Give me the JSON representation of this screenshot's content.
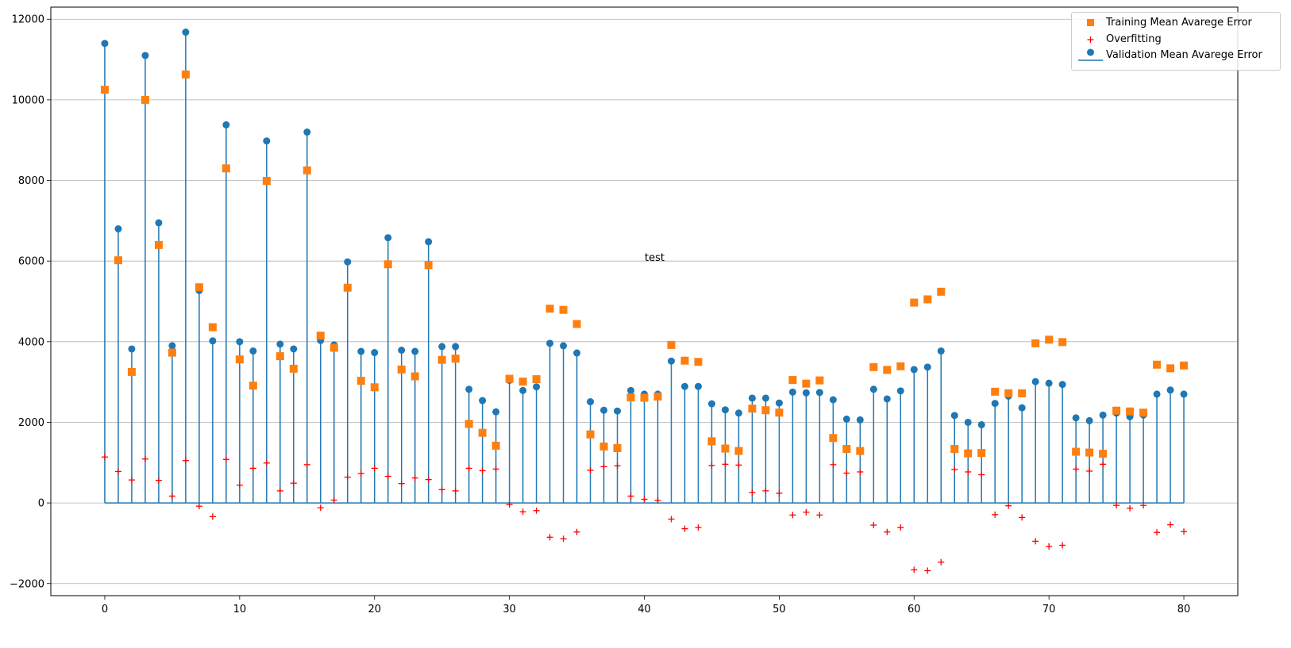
{
  "chart_data": {
    "type": "stem",
    "title": "",
    "xlabel": "",
    "ylabel": "",
    "annotation": {
      "text": "test",
      "x": 40,
      "y": 6000
    },
    "xlim": [
      -4,
      84
    ],
    "ylim": [
      -2300,
      12300
    ],
    "xticks": [
      0,
      10,
      20,
      30,
      40,
      50,
      60,
      70,
      80
    ],
    "yticks": [
      -2000,
      0,
      2000,
      4000,
      6000,
      8000,
      10000,
      12000
    ],
    "grid": {
      "y": true,
      "x": false
    },
    "legend": {
      "placement": "upper right",
      "entries": [
        {
          "label": "Training Mean Avarege Error",
          "marker": "square",
          "color": "#ff7f0e"
        },
        {
          "label": "Overfitting",
          "marker": "plus",
          "color": "#ff0000"
        },
        {
          "label": "Validation Mean Avarege Error",
          "marker": "stem",
          "color": "#1f77b4"
        }
      ]
    },
    "series": [
      {
        "name": "Validation Mean Avarege Error",
        "marker": "stem-circle",
        "color": "#1f77b4",
        "values": [
          11400,
          6800,
          3820,
          11100,
          6950,
          3900,
          11680,
          5270,
          4020,
          9380,
          4000,
          3770,
          8980,
          3940,
          3820,
          9200,
          4030,
          3920,
          5980,
          3760,
          3730,
          6580,
          3790,
          3760,
          6480,
          3880,
          3880,
          2820,
          2540,
          2260,
          3040,
          2790,
          2880,
          3960,
          3900,
          3720,
          2510,
          2300,
          2280,
          2790,
          2700,
          2700,
          3520,
          2890,
          2890,
          2460,
          2310,
          2230,
          2600,
          2600,
          2480,
          2750,
          2730,
          2740,
          2560,
          2080,
          2060,
          2820,
          2580,
          2780,
          3310,
          3370,
          3770,
          2170,
          2000,
          1940,
          2470,
          2650,
          2360,
          3010,
          2970,
          2940,
          2110,
          2040,
          2180,
          2230,
          2140,
          2180,
          2700,
          2800,
          2700
        ]
      },
      {
        "name": "Training Mean Avarege Error",
        "marker": "square",
        "color": "#ff7f0e",
        "values": [
          10250,
          6020,
          3250,
          10000,
          6400,
          3730,
          10630,
          5350,
          4360,
          8300,
          3560,
          2910,
          7990,
          3640,
          3330,
          8250,
          4150,
          3850,
          5340,
          3030,
          2870,
          5920,
          3310,
          3140,
          5900,
          3550,
          3580,
          1960,
          1740,
          1420,
          3080,
          3010,
          3070,
          4820,
          4790,
          4440,
          1700,
          1400,
          1360,
          2620,
          2610,
          2640,
          3920,
          3530,
          3500,
          1530,
          1350,
          1290,
          2340,
          2300,
          2240,
          3050,
          2960,
          3040,
          1610,
          1340,
          1290,
          3370,
          3300,
          3390,
          4970,
          5050,
          5240,
          1340,
          1230,
          1240,
          2760,
          2720,
          2720,
          3960,
          4050,
          3990,
          1270,
          1250,
          1220,
          2290,
          2270,
          2240,
          3430,
          3340,
          3410
        ]
      },
      {
        "name": "Overfitting",
        "marker": "plus",
        "color": "#ff0000",
        "values": [
          1140,
          780,
          570,
          1090,
          560,
          170,
          1050,
          -80,
          -340,
          1080,
          440,
          860,
          990,
          300,
          490,
          950,
          -120,
          70,
          640,
          730,
          860,
          660,
          480,
          620,
          580,
          330,
          300,
          860,
          800,
          840,
          -40,
          -220,
          -190,
          -850,
          -890,
          -720,
          810,
          900,
          920,
          170,
          90,
          60,
          -400,
          -640,
          -610,
          930,
          960,
          940,
          260,
          300,
          240,
          -300,
          -230,
          -300,
          950,
          740,
          770,
          -550,
          -720,
          -610,
          -1660,
          -1680,
          -1470,
          830,
          770,
          700,
          -290,
          -70,
          -360,
          -950,
          -1080,
          -1050,
          840,
          790,
          960,
          -60,
          -130,
          -60,
          -730,
          -540,
          -710
        ]
      }
    ]
  }
}
